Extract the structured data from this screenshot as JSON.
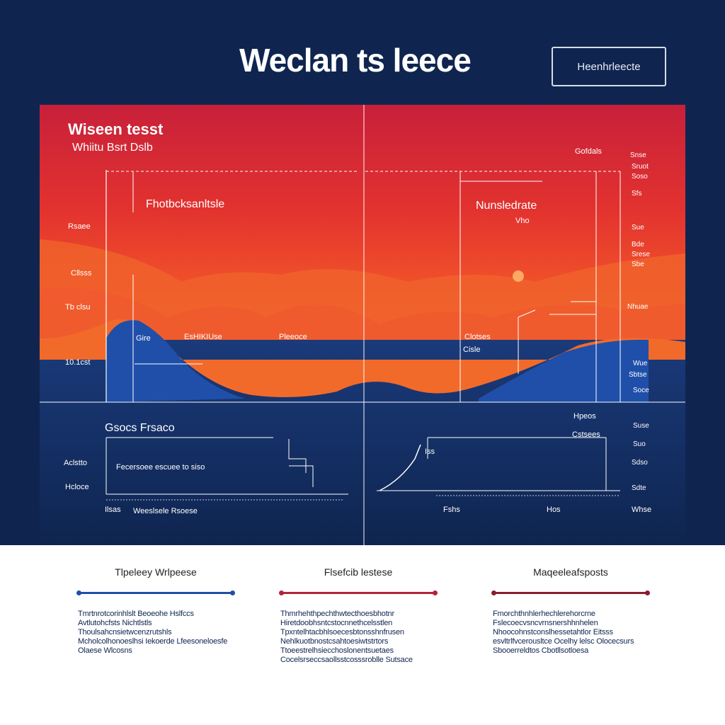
{
  "header": {
    "title": "Weclan ts leece",
    "button_label": "Heenhrleecte"
  },
  "panel": {
    "top_left_title": "Wiseen tesst",
    "top_left_subtitle": "Whiitu Bsrt Dslb",
    "left_annotation": "Fhotbcksanltsle",
    "left_axis_labels": [
      "Rsaee",
      "Cllsss",
      "Tb clsu",
      "10.1cst"
    ],
    "left_wave_labels": [
      "Gire",
      "EsHIKIUse",
      "Pleeoce"
    ],
    "right_annotation_line1": "Nunsledrate",
    "right_annotation_line2": "Vho",
    "right_top_label": "Gofdals",
    "right_axis_labels": [
      "Snse",
      "Sruot",
      "Soso",
      "Sfs",
      "Sue",
      "Bde",
      "Srese",
      "Sbe",
      "Nhuae",
      "Wue",
      "Sbtse",
      "Soce"
    ],
    "right_wave_labels": [
      "Clotses",
      "Cisle"
    ],
    "bottom_left_title": "Gsocs Frsaco",
    "bottom_left_axis": [
      "Aclstto",
      "Hcloce",
      "Ilsas"
    ],
    "bottom_left_caption": "Fecersoee escuee to siso",
    "bottom_left_footer": "Weeslsele Rsoese",
    "bottom_right_top": "Hpeos",
    "bottom_right_label": "Cstsees",
    "bottom_right_marker": "Iss",
    "bottom_right_axis": [
      "Suse",
      "Suo",
      "Sdso",
      "Sdte"
    ],
    "bottom_right_footer_left": "Fshs",
    "bottom_right_footer_mid": "Hos",
    "bottom_right_footer_right": "Whse"
  },
  "cards": [
    {
      "title": "Tlpeleey Wrlpeese",
      "rule_color": "#1f4fa8",
      "text": "Tmrtnrotcorinhlslt Beoeohe Hslfccs Avtlutohcfsts Nichtlstls Thoulsahcnsietwcenzrutshls Mcholcolhonoeslhsi Iekoerde Lfeesoneloesfe Olaese Wlcosns"
    },
    {
      "title": "Flsefcib lestese",
      "rule_color": "#b0263a",
      "text": "Thmrhehthpechthwtecthoesbhotnr Hiretdoobhsntcstocnnethcelsstlen Tpxntelhtacbhlsoecesbtonsshnfrusen Nehlkuotbnostcsahtoesiwtstrtors Ttoeestrelhsiecchoslonentsuetaes Cocelsrseccsaollsstcosssroblle Sutsace"
    },
    {
      "title": "Maqeeleafsposts",
      "rule_color": "#8a1e2e",
      "text": "Fmorchthnhlerhechlerehorcrne Fslecoecvsncvrnsnershhnhelen Nhoocohnstconslhessetahtlor Eitsss esvltrlfvcerousltce Ocelhy lelsc Olocecsurs Sbooerreldtos Cbotllsotloesa"
    }
  ],
  "colors": {
    "navy": "#0f2550",
    "red": "#e2322f",
    "orange": "#f26a2a",
    "blue": "#1f4fa8"
  }
}
